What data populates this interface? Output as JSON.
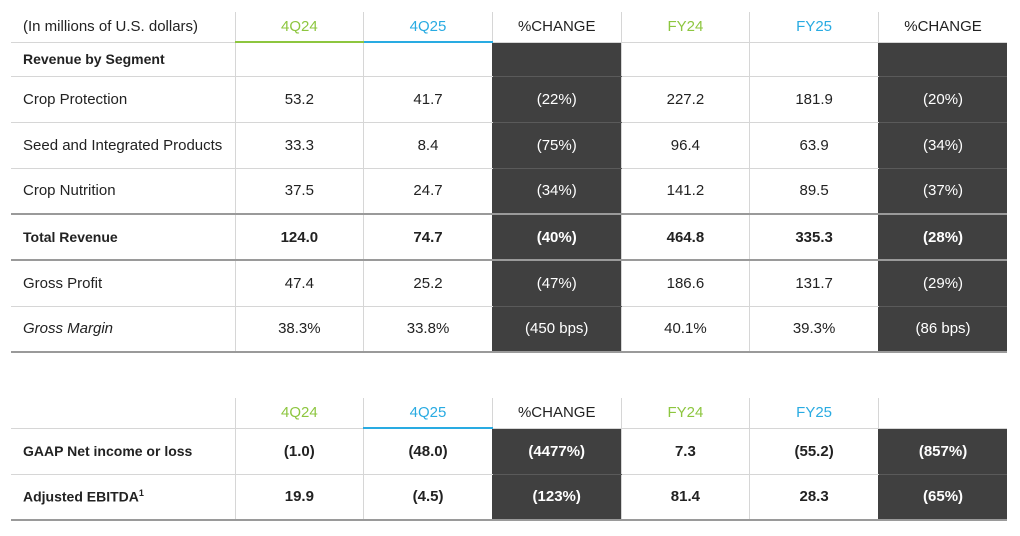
{
  "table1": {
    "headers": [
      "(In millions of U.S. dollars)",
      "4Q24",
      "4Q25",
      "%CHANGE",
      "FY24",
      "FY25",
      "%CHANGE"
    ],
    "section_label": "Revenue by Segment",
    "rows": [
      {
        "label": "Crop Protection",
        "values": [
          "53.2",
          "41.7",
          "(22%)",
          "227.2",
          "181.9",
          "(20%)"
        ]
      },
      {
        "label": "Seed and Integrated Products",
        "values": [
          "33.3",
          "8.4",
          "(75%)",
          "96.4",
          "63.9",
          "(34%)"
        ]
      },
      {
        "label": "Crop Nutrition",
        "values": [
          "37.5",
          "24.7",
          "(34%)",
          "141.2",
          "89.5",
          "(37%)"
        ]
      },
      {
        "label": "Total Revenue",
        "values": [
          "124.0",
          "74.7",
          "(40%)",
          "464.8",
          "335.3",
          "(28%)"
        ]
      },
      {
        "label": "Gross Profit",
        "values": [
          "47.4",
          "25.2",
          "(47%)",
          "186.6",
          "131.7",
          "(29%)"
        ]
      },
      {
        "label": "Gross Margin",
        "values": [
          "38.3%",
          "33.8%",
          "(450 bps)",
          "40.1%",
          "39.3%",
          "(86 bps)"
        ]
      }
    ]
  },
  "table2": {
    "headers": [
      "",
      "4Q24",
      "4Q25",
      "%CHANGE",
      "FY24",
      "FY25",
      ""
    ],
    "rows": [
      {
        "label": "GAAP Net income or loss",
        "values": [
          "(1.0)",
          "(48.0)",
          "(4477%)",
          "7.3",
          "(55.2)",
          "(857%)"
        ]
      },
      {
        "label": "Adjusted EBITDA",
        "footnote": "1",
        "values": [
          "19.9",
          "(4.5)",
          "(123%)",
          "81.4",
          "28.3",
          "(65%)"
        ]
      }
    ]
  },
  "colors": {
    "green": "#8dc63f",
    "blue": "#29abe2",
    "dark": "#404040"
  }
}
